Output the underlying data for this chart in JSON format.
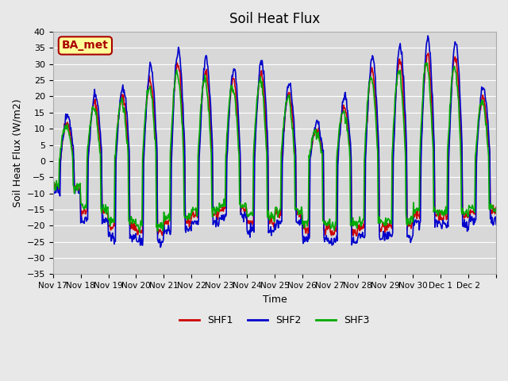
{
  "title": "Soil Heat Flux",
  "xlabel": "Time",
  "ylabel": "Soil Heat Flux (W/m2)",
  "ylim": [
    -35,
    40
  ],
  "yticks": [
    -35,
    -30,
    -25,
    -20,
    -15,
    -10,
    -5,
    0,
    5,
    10,
    15,
    20,
    25,
    30,
    35,
    40
  ],
  "xtick_labels": [
    "Nov 17",
    "Nov 18",
    "Nov 19",
    "Nov 20",
    "Nov 21",
    "Nov 22",
    "Nov 23",
    "Nov 24",
    "Nov 25",
    "Nov 26",
    "Nov 27",
    "Nov 28",
    "Nov 29",
    "Nov 30",
    "Dec 1",
    "Dec 2"
  ],
  "line_colors": {
    "SHF1": "#cc0000",
    "SHF2": "#0000cc",
    "SHF3": "#00aa00"
  },
  "line_widths": {
    "SHF1": 1.2,
    "SHF2": 1.2,
    "SHF3": 1.2
  },
  "bg_color": "#e8e8e8",
  "plot_bg_color": "#d8d8d8",
  "annotation_text": "BA_met",
  "annotation_bg": "#ffff99",
  "annotation_border": "#aa0000",
  "annotation_text_color": "#aa0000",
  "num_days": 16,
  "points_per_day": 48,
  "day_peaks_pos": [
    12,
    18,
    20,
    25,
    30,
    28,
    25,
    27,
    21,
    10,
    17,
    28,
    31,
    33,
    32,
    20
  ],
  "day_peaks_neg": [
    -11,
    -21,
    -27,
    -29,
    -25,
    -22,
    -20,
    -25,
    -22,
    -28,
    -29,
    -27,
    -27,
    -22,
    -23,
    -21
  ]
}
